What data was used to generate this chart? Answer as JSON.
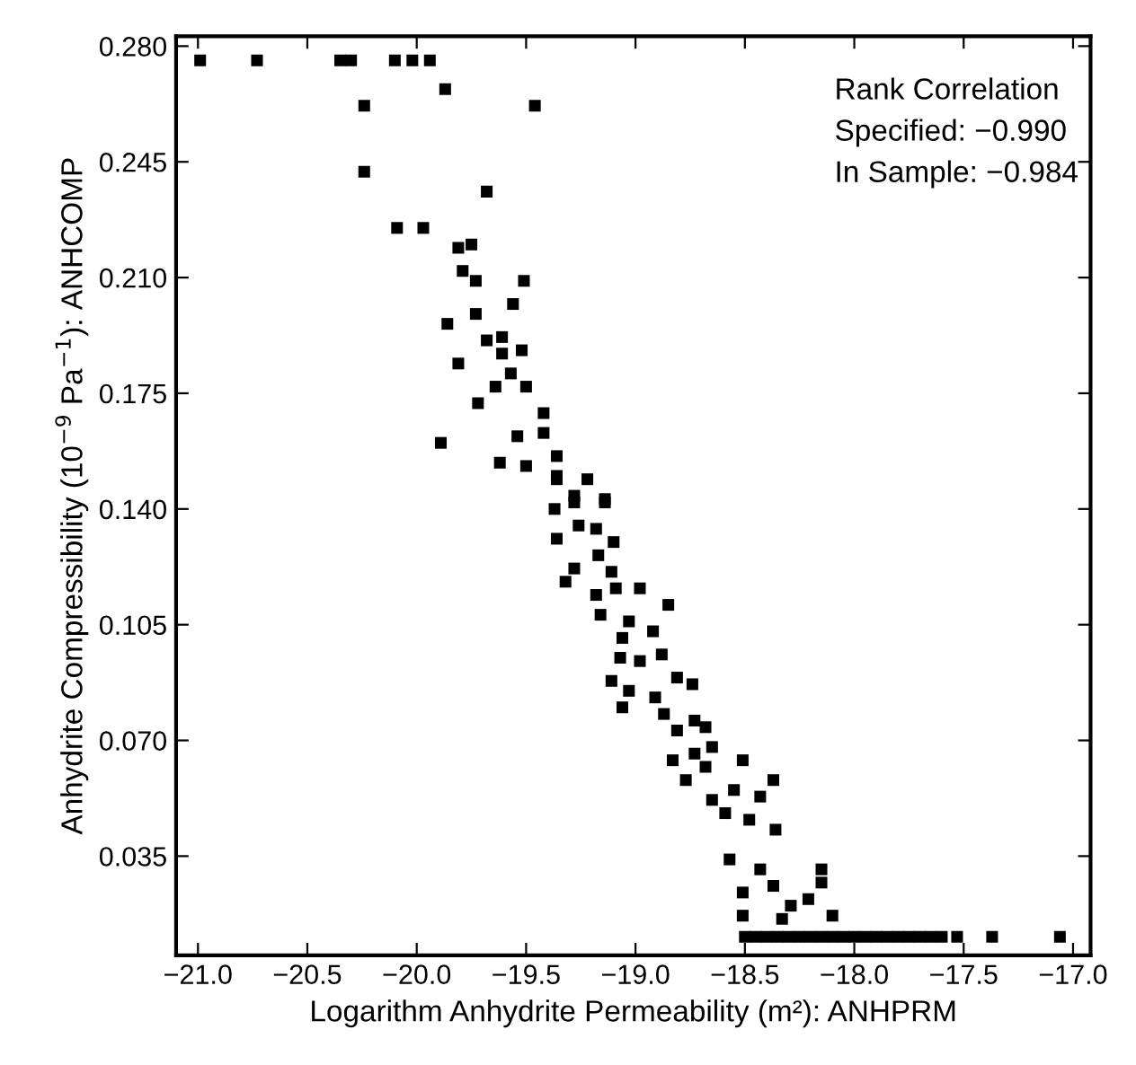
{
  "chart_data": {
    "type": "scatter",
    "xlabel": "Logarithm Anhydrite Permeability (m²): ANHPRM",
    "ylabel": "Anhydrite Compressibility (10$^{−9}$ Pa$^{−1}$): ANHCOMP",
    "annotations": [
      "Rank Correlation",
      "Specified: −0.990",
      "In Sample: −0.984"
    ],
    "xlim": [
      -21.1,
      -16.92
    ],
    "ylim": [
      0.005,
      0.283
    ],
    "xticks": [
      {
        "value": -21.0,
        "label": "−21.0"
      },
      {
        "value": -20.5,
        "label": "−20.5"
      },
      {
        "value": -20.0,
        "label": "−20.0"
      },
      {
        "value": -19.5,
        "label": "−19.5"
      },
      {
        "value": -19.0,
        "label": "−19.0"
      },
      {
        "value": -18.5,
        "label": "−18.5"
      },
      {
        "value": -18.0,
        "label": "−18.0"
      },
      {
        "value": -17.5,
        "label": "−17.5"
      },
      {
        "value": -17.0,
        "label": "−17.0"
      }
    ],
    "yticks": [
      {
        "value": 0.035,
        "label": "0.035"
      },
      {
        "value": 0.07,
        "label": "0.070"
      },
      {
        "value": 0.105,
        "label": "0.105"
      },
      {
        "value": 0.14,
        "label": "0.140"
      },
      {
        "value": 0.175,
        "label": "0.175"
      },
      {
        "value": 0.21,
        "label": "0.210"
      },
      {
        "value": 0.245,
        "label": "0.245"
      },
      {
        "value": 0.28,
        "label": "0.280"
      }
    ],
    "grid": false,
    "marker": "square",
    "series": [
      {
        "color": "#000000",
        "x": [
          -20.99,
          -20.73,
          -20.35,
          -20.3,
          -20.1,
          -20.02,
          -19.94,
          -19.87,
          -19.46,
          -20.24,
          -20.24,
          -19.68,
          -20.09,
          -19.97,
          -19.81,
          -19.75,
          -19.79,
          -19.73,
          -19.51,
          -19.56,
          -19.86,
          -19.73,
          -19.68,
          -19.61,
          -19.52,
          -19.61,
          -19.81,
          -19.57,
          -19.64,
          -19.5,
          -19.72,
          -19.42,
          -19.89,
          -19.54,
          -19.42,
          -19.62,
          -19.5,
          -19.36,
          -19.36,
          -19.22,
          -19.28,
          -19.14,
          -19.36,
          -19.37,
          -19.28,
          -19.14,
          -19.26,
          -19.18,
          -19.36,
          -19.28,
          -19.32,
          -19.17,
          -19.1,
          -19.18,
          -19.09,
          -18.98,
          -19.11,
          -18.85,
          -19.16,
          -19.03,
          -18.92,
          -19.06,
          -19.07,
          -18.98,
          -18.88,
          -19.11,
          -19.03,
          -19.06,
          -18.91,
          -18.81,
          -18.74,
          -18.87,
          -18.81,
          -18.73,
          -18.68,
          -18.83,
          -18.73,
          -18.65,
          -18.51,
          -18.77,
          -18.68,
          -18.37,
          -18.65,
          -18.55,
          -18.43,
          -18.59,
          -18.48,
          -18.36,
          -18.57,
          -18.43,
          -18.15,
          -18.15,
          -18.51,
          -18.37,
          -18.21,
          -18.29,
          -18.51,
          -18.33,
          -18.1,
          -18.5,
          -18.45,
          -18.4,
          -18.35,
          -18.3,
          -18.25,
          -18.2,
          -18.15,
          -18.1,
          -18.05,
          -18.0,
          -17.95,
          -17.9,
          -17.85,
          -17.8,
          -17.75,
          -17.7,
          -17.65,
          -17.6,
          -17.53,
          -17.37,
          -17.06
        ],
        "values": [
          0.2757,
          0.2757,
          0.2757,
          0.2757,
          0.2757,
          0.2757,
          0.2757,
          0.267,
          0.262,
          0.262,
          0.242,
          0.236,
          0.225,
          0.225,
          0.219,
          0.22,
          0.212,
          0.209,
          0.209,
          0.202,
          0.196,
          0.199,
          0.191,
          0.192,
          0.188,
          0.187,
          0.184,
          0.181,
          0.177,
          0.177,
          0.172,
          0.169,
          0.16,
          0.162,
          0.163,
          0.154,
          0.153,
          0.156,
          0.149,
          0.149,
          0.144,
          0.143,
          0.15,
          0.14,
          0.142,
          0.142,
          0.135,
          0.134,
          0.131,
          0.122,
          0.118,
          0.126,
          0.13,
          0.114,
          0.116,
          0.116,
          0.121,
          0.111,
          0.108,
          0.106,
          0.103,
          0.101,
          0.095,
          0.094,
          0.096,
          0.088,
          0.085,
          0.08,
          0.083,
          0.089,
          0.087,
          0.078,
          0.073,
          0.076,
          0.074,
          0.064,
          0.066,
          0.068,
          0.064,
          0.058,
          0.062,
          0.058,
          0.052,
          0.055,
          0.053,
          0.048,
          0.046,
          0.043,
          0.034,
          0.031,
          0.031,
          0.027,
          0.024,
          0.026,
          0.022,
          0.02,
          0.017,
          0.016,
          0.017,
          0.0106,
          0.0106,
          0.0106,
          0.0106,
          0.0106,
          0.0106,
          0.0106,
          0.0106,
          0.0106,
          0.0106,
          0.0106,
          0.0106,
          0.0106,
          0.0106,
          0.0106,
          0.0106,
          0.0106,
          0.0106,
          0.0106,
          0.0106,
          0.0106,
          0.0106
        ]
      }
    ]
  }
}
